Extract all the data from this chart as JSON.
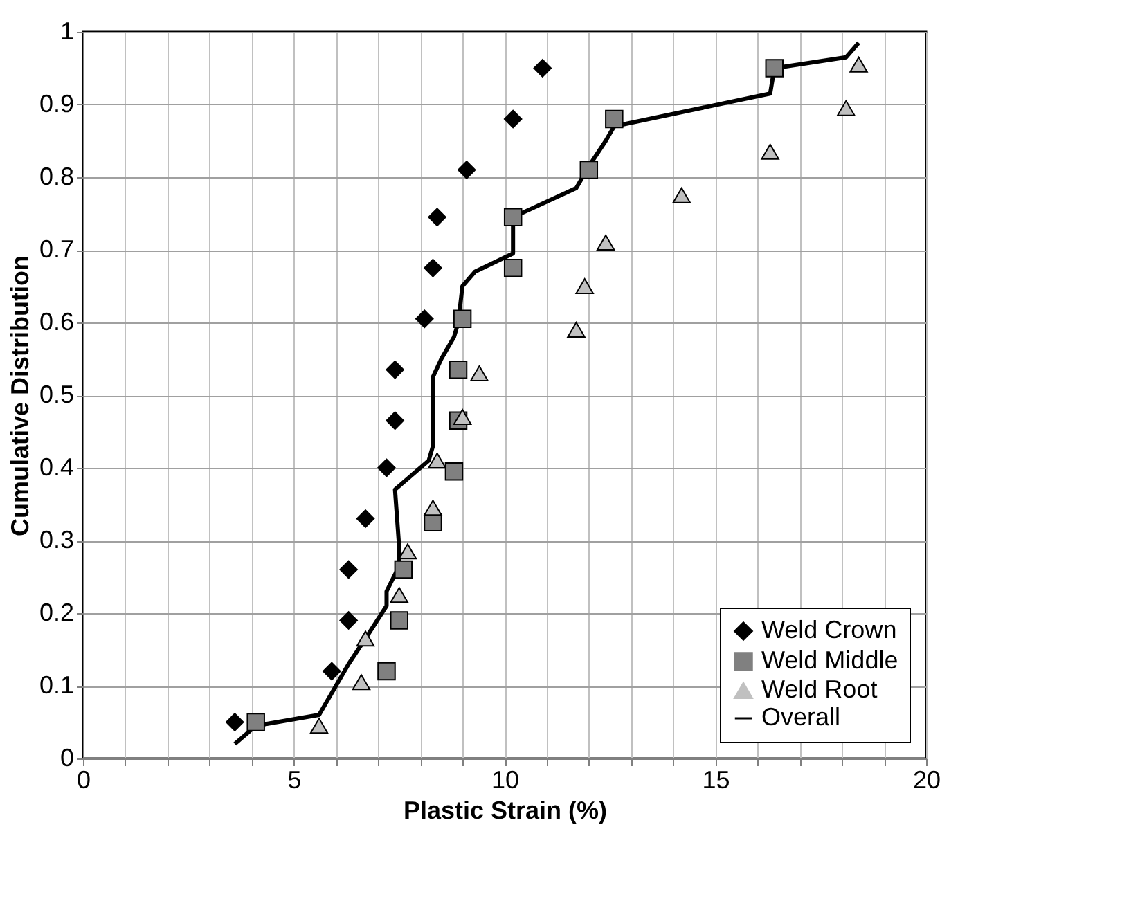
{
  "chart_data": {
    "type": "scatter",
    "xlabel": "Plastic Strain (%)",
    "ylabel": "Cumulative Distribution",
    "xlim": [
      0,
      20
    ],
    "ylim": [
      0,
      1
    ],
    "xticks": [
      0,
      {
        "value": 1,
        "label": null
      },
      {
        "value": 2,
        "label": null
      },
      {
        "value": 3,
        "label": null
      },
      {
        "value": 4,
        "label": null
      },
      5,
      {
        "value": 6,
        "label": null
      },
      {
        "value": 7,
        "label": null
      },
      {
        "value": 8,
        "label": null
      },
      {
        "value": 9,
        "label": null
      },
      10,
      {
        "value": 11,
        "label": null
      },
      {
        "value": 12,
        "label": null
      },
      {
        "value": 13,
        "label": null
      },
      {
        "value": 14,
        "label": null
      },
      15,
      {
        "value": 16,
        "label": null
      },
      {
        "value": 17,
        "label": null
      },
      {
        "value": 18,
        "label": null
      },
      {
        "value": 19,
        "label": null
      },
      20
    ],
    "yticks": [
      0,
      0.1,
      0.2,
      0.3,
      0.4,
      0.5,
      0.6,
      0.7,
      0.8,
      0.9,
      1
    ],
    "grid": true,
    "legend": "bottom right",
    "series": [
      {
        "name": "Weld Crown",
        "marker": "diamond",
        "color": "#000000",
        "x": [
          3.6,
          5.9,
          6.3,
          6.3,
          6.7,
          7.2,
          7.4,
          7.4,
          8.1,
          8.3,
          8.4,
          9.1,
          10.2,
          10.9
        ],
        "values": [
          0.05,
          0.12,
          0.19,
          0.26,
          0.33,
          0.4,
          0.465,
          0.535,
          0.605,
          0.675,
          0.745,
          0.81,
          0.88,
          0.95
        ]
      },
      {
        "name": "Weld Middle",
        "marker": "square",
        "color": "#808080",
        "x": [
          4.1,
          7.2,
          7.5,
          7.6,
          8.3,
          8.8,
          8.9,
          8.9,
          9.0,
          10.2,
          10.2,
          12.0,
          12.6,
          16.4
        ],
        "values": [
          0.05,
          0.12,
          0.19,
          0.26,
          0.325,
          0.395,
          0.465,
          0.535,
          0.605,
          0.675,
          0.745,
          0.81,
          0.88,
          0.95
        ]
      },
      {
        "name": "Weld Root",
        "marker": "triangle",
        "color": "#c0c0c0",
        "x": [
          5.6,
          6.6,
          6.7,
          7.5,
          7.7,
          8.3,
          8.4,
          9.0,
          9.4,
          11.7,
          11.9,
          12.4,
          14.2,
          16.3,
          18.1,
          18.4
        ],
        "values": [
          0.045,
          0.105,
          0.165,
          0.225,
          0.285,
          0.345,
          0.41,
          0.47,
          0.53,
          0.59,
          0.65,
          0.71,
          0.775,
          0.835,
          0.895,
          0.955
        ]
      },
      {
        "name": "Overall",
        "type": "line",
        "marker": "none",
        "line_style": "solid",
        "color": "#000000",
        "x": [
          3.6,
          4.1,
          5.6,
          5.9,
          6.3,
          6.7,
          7.2,
          7.2,
          7.5,
          7.5,
          7.4,
          7.6,
          8.2,
          8.3,
          8.3,
          8.5,
          8.8,
          8.9,
          9.0,
          9.3,
          10.2,
          10.2,
          11.7,
          12.0,
          12.4,
          12.6,
          16.3,
          16.4,
          18.1,
          18.4
        ],
        "values": [
          0.02,
          0.045,
          0.06,
          0.09,
          0.13,
          0.165,
          0.21,
          0.23,
          0.265,
          0.29,
          0.37,
          0.38,
          0.41,
          0.43,
          0.525,
          0.55,
          0.58,
          0.6,
          0.65,
          0.67,
          0.695,
          0.745,
          0.785,
          0.815,
          0.85,
          0.87,
          0.915,
          0.95,
          0.965,
          0.985
        ]
      }
    ]
  }
}
